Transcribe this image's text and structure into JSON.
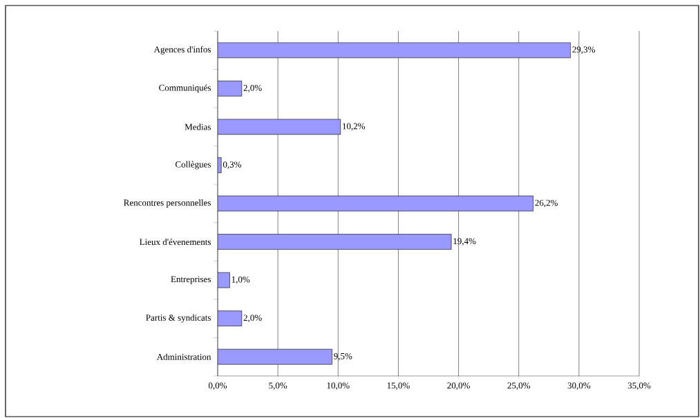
{
  "chart_data": {
    "type": "bar",
    "orientation": "horizontal",
    "categories": [
      "Agences d'infos",
      "Communiqués",
      "Medias",
      "Collègues",
      "Rencontres personnelles",
      "Lieux d'évenements",
      "Entreprises",
      "Partis & syndicats",
      "Administration"
    ],
    "values": [
      29.3,
      2.0,
      10.2,
      0.3,
      26.2,
      19.4,
      1.0,
      2.0,
      9.5
    ],
    "value_labels": [
      "29,3%",
      "2,0%",
      "10,2%",
      "0,3%",
      "26,2%",
      "19,4%",
      "1,0%",
      "2,0%",
      "9,5%"
    ],
    "color": "#9999ff",
    "xlim": [
      0,
      35
    ],
    "xticks": [
      {
        "value": 0,
        "label": "0,0%"
      },
      {
        "value": 5,
        "label": "5,0%"
      },
      {
        "value": 10,
        "label": "10,0%"
      },
      {
        "value": 15,
        "label": "15,0%"
      },
      {
        "value": 20,
        "label": "20,0%"
      },
      {
        "value": 25,
        "label": "25,0%"
      },
      {
        "value": 30,
        "label": "30,0%"
      },
      {
        "value": 35,
        "label": "35,0%"
      }
    ],
    "grid": "x"
  }
}
